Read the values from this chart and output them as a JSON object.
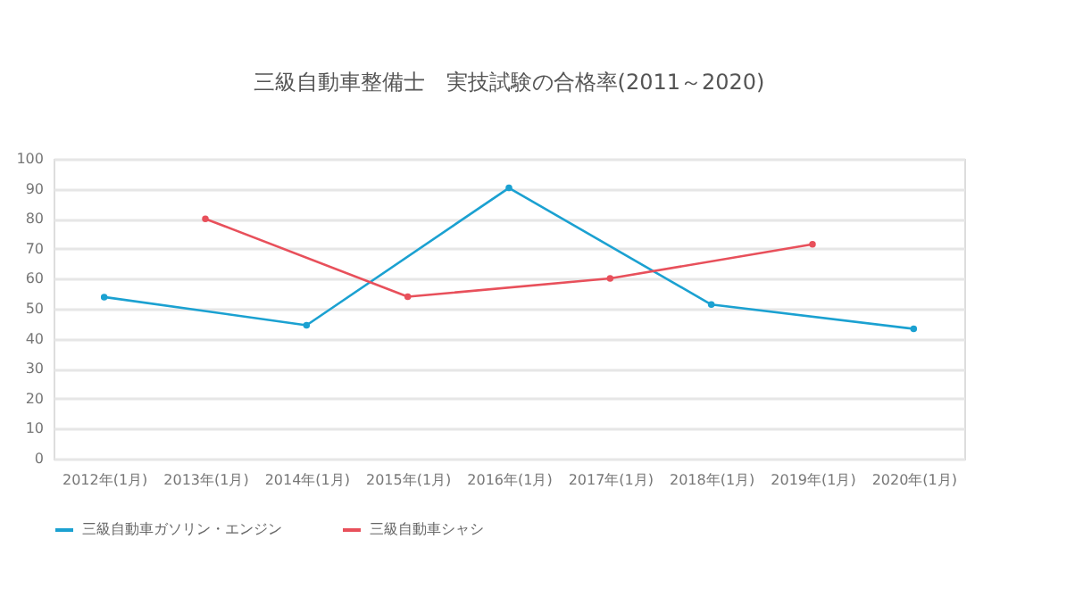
{
  "chart_data": {
    "type": "line",
    "title": "三級自動車整備士　実技試験の合格率(2011～2020)",
    "categories": [
      "2012年(1月)",
      "2013年(1月)",
      "2014年(1月)",
      "2015年(1月)",
      "2016年(1月)",
      "2017年(1月)",
      "2018年(1月)",
      "2019年(1月)",
      "2020年(1月)"
    ],
    "series": [
      {
        "name": "三級自動車ガソリン・エンジン",
        "color": "#1ba1d1",
        "values": [
          53.9,
          null,
          44.5,
          null,
          90.3,
          null,
          51.4,
          null,
          43.3
        ]
      },
      {
        "name": "三級自動車シャシ",
        "color": "#e8505b",
        "values": [
          null,
          80,
          null,
          54,
          null,
          60.1,
          null,
          71.5,
          null
        ]
      }
    ],
    "ylim": [
      0,
      100
    ],
    "yticks": [
      0,
      10,
      20,
      30,
      40,
      50,
      60,
      70,
      80,
      90,
      100
    ],
    "grid": "y",
    "legend": "bottom",
    "marker": "circle",
    "line_style": "solid"
  }
}
